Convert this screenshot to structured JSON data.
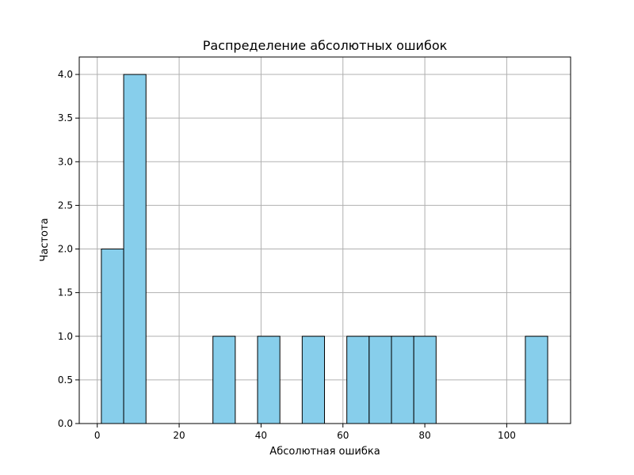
{
  "chart_data": {
    "type": "bar",
    "title": "Распределение абсолютных ошибок",
    "xlabel": "Абсолютная ошибка",
    "ylabel": "Частота",
    "xlim": [
      -4.4,
      115.6
    ],
    "ylim": [
      0,
      4.2
    ],
    "xticks": [
      0,
      20,
      40,
      60,
      80,
      100
    ],
    "yticks": [
      0.0,
      0.5,
      1.0,
      1.5,
      2.0,
      2.5,
      3.0,
      3.5,
      4.0
    ],
    "xtick_labels": [
      "0",
      "20",
      "40",
      "60",
      "80",
      "100"
    ],
    "ytick_labels": [
      "0.0",
      "0.5",
      "1.0",
      "1.5",
      "2.0",
      "2.5",
      "3.0",
      "3.5",
      "4.0"
    ],
    "grid": true,
    "bar_color": "#87CEEB",
    "edge_color": "#000000",
    "bins": [
      {
        "start": 1.0,
        "end": 6.45,
        "count": 2
      },
      {
        "start": 6.45,
        "end": 11.9,
        "count": 4
      },
      {
        "start": 11.9,
        "end": 17.35,
        "count": 0
      },
      {
        "start": 17.35,
        "end": 22.8,
        "count": 0
      },
      {
        "start": 22.8,
        "end": 28.25,
        "count": 0
      },
      {
        "start": 28.25,
        "end": 33.7,
        "count": 1
      },
      {
        "start": 33.7,
        "end": 39.15,
        "count": 0
      },
      {
        "start": 39.15,
        "end": 44.6,
        "count": 1
      },
      {
        "start": 44.6,
        "end": 50.05,
        "count": 0
      },
      {
        "start": 50.05,
        "end": 55.5,
        "count": 1
      },
      {
        "start": 55.5,
        "end": 60.95,
        "count": 0
      },
      {
        "start": 60.95,
        "end": 66.4,
        "count": 1
      },
      {
        "start": 66.4,
        "end": 71.85,
        "count": 1
      },
      {
        "start": 71.85,
        "end": 77.3,
        "count": 1
      },
      {
        "start": 77.3,
        "end": 82.75,
        "count": 1
      },
      {
        "start": 82.75,
        "end": 88.2,
        "count": 0
      },
      {
        "start": 88.2,
        "end": 93.65,
        "count": 0
      },
      {
        "start": 93.65,
        "end": 99.1,
        "count": 0
      },
      {
        "start": 99.1,
        "end": 104.55,
        "count": 0
      },
      {
        "start": 104.55,
        "end": 110.0,
        "count": 1
      }
    ]
  }
}
